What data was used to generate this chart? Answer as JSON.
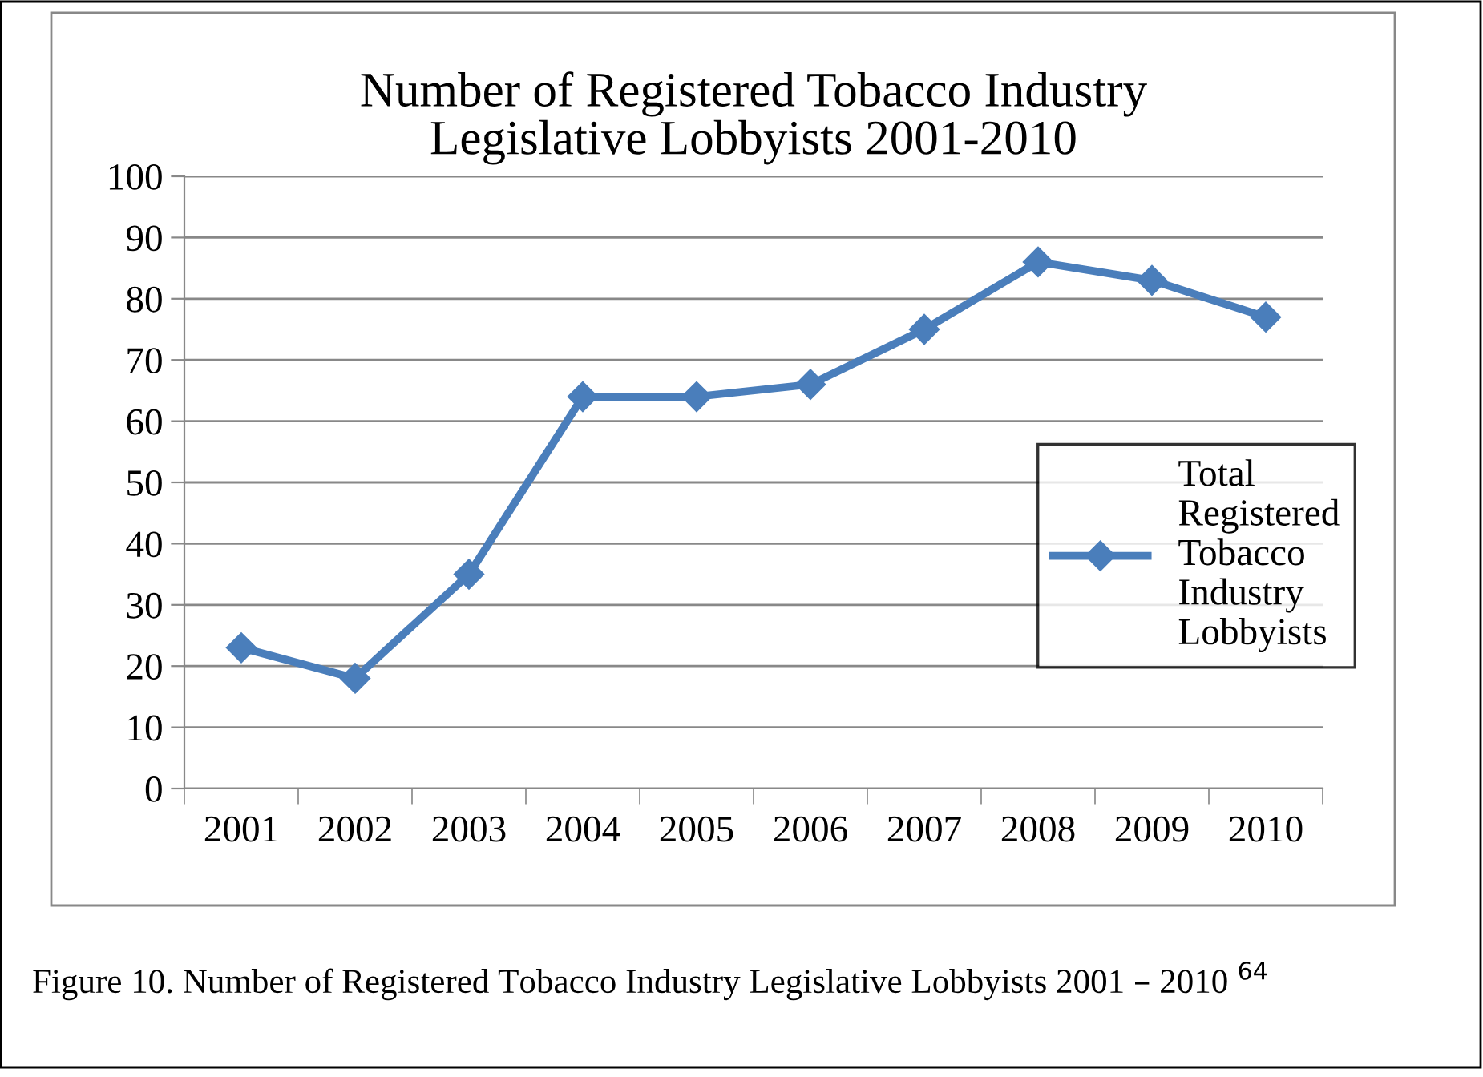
{
  "chart_data": {
    "type": "line",
    "title": "Number of Registered Tobacco Industry\nLegislative Lobbyists 2001-2010",
    "categories": [
      "2001",
      "2002",
      "2003",
      "2004",
      "2005",
      "2006",
      "2007",
      "2008",
      "2009",
      "2010"
    ],
    "series": [
      {
        "name": "Total Registered Tobacco Industry Lobbyists",
        "color": "#4a7ebb",
        "values": [
          23,
          18,
          35,
          64,
          64,
          66,
          75,
          86,
          83,
          77
        ]
      }
    ],
    "ylim": [
      0,
      100
    ],
    "yticks": [
      0,
      10,
      20,
      30,
      40,
      50,
      60,
      70,
      80,
      90,
      100
    ],
    "grid": "y",
    "legend": "right",
    "marker": "diamond",
    "line_style": "solid",
    "annotations": [
      "Figure 10. Number of Registered Tobacco Industry Legislative Lobbyists 2001 – 2010 $^{64}$"
    ]
  }
}
